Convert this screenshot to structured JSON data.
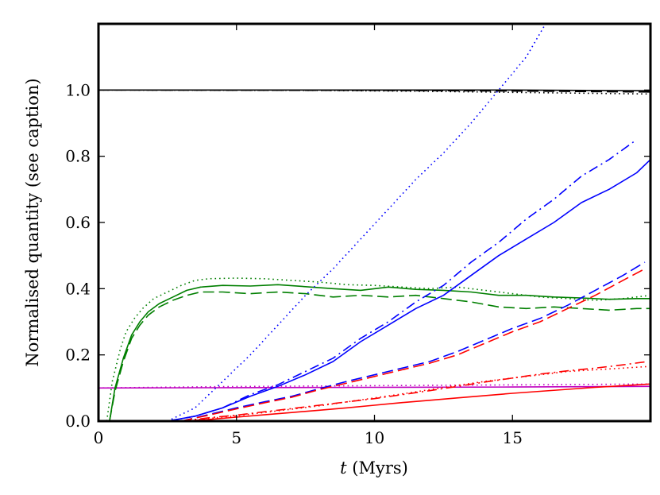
{
  "chart_data": {
    "type": "line",
    "title": "",
    "xlabel_italic": "t",
    "xlabel_rest": " (Myrs)",
    "ylabel": "Normalised quantity (see caption)",
    "xlim": [
      0,
      20
    ],
    "ylim": [
      0,
      1.2
    ],
    "xticks": [
      0,
      5,
      10,
      15
    ],
    "xtick_labels": [
      "0",
      "5",
      "10",
      "15"
    ],
    "yticks": [
      0,
      0.2,
      0.4,
      0.6,
      0.8,
      1.0
    ],
    "ytick_labels": [
      "0.0",
      "0.2",
      "0.4",
      "0.6",
      "0.8",
      "1.0"
    ],
    "grid": false,
    "series": [
      {
        "name": "black-solid",
        "color": "#000000",
        "style": "solid",
        "x": [
          0,
          5,
          10,
          15,
          20
        ],
        "y": [
          1.0,
          1.0,
          1.0,
          1.0,
          0.998
        ]
      },
      {
        "name": "black-dotted",
        "color": "#000000",
        "style": "dotted",
        "x": [
          0,
          8,
          12,
          16,
          20
        ],
        "y": [
          1.0,
          0.999,
          0.996,
          0.992,
          0.988
        ]
      },
      {
        "name": "black-dashed",
        "color": "#000000",
        "style": "dashed",
        "x": [
          0,
          10,
          15,
          20
        ],
        "y": [
          1.0,
          0.999,
          0.997,
          0.994
        ]
      },
      {
        "name": "magenta-solid",
        "color": "#bf00bf",
        "style": "solid",
        "x": [
          0,
          5,
          10,
          15,
          20
        ],
        "y": [
          0.1,
          0.101,
          0.102,
          0.103,
          0.105
        ]
      },
      {
        "name": "magenta-dotted",
        "color": "#bf00bf",
        "style": "dotted",
        "x": [
          0,
          4,
          8,
          12,
          16,
          20
        ],
        "y": [
          0.1,
          0.104,
          0.106,
          0.108,
          0.11,
          0.112
        ]
      },
      {
        "name": "green-dotted",
        "color": "#007f00",
        "style": "dotted",
        "x": [
          0.3,
          0.5,
          0.8,
          1.0,
          1.3,
          1.6,
          2.0,
          2.5,
          3.0,
          3.5,
          4.0,
          5,
          6,
          7,
          8,
          9,
          10,
          11,
          12,
          13,
          14,
          15,
          16,
          17,
          18,
          19,
          20
        ],
        "y": [
          0.0,
          0.12,
          0.22,
          0.27,
          0.31,
          0.34,
          0.37,
          0.39,
          0.41,
          0.425,
          0.43,
          0.432,
          0.43,
          0.425,
          0.42,
          0.412,
          0.41,
          0.405,
          0.4,
          0.405,
          0.395,
          0.385,
          0.375,
          0.37,
          0.365,
          0.37,
          0.38
        ]
      },
      {
        "name": "green-solid",
        "color": "#007f00",
        "style": "solid",
        "x": [
          0.4,
          0.6,
          0.9,
          1.2,
          1.5,
          1.8,
          2.2,
          2.7,
          3.2,
          3.7,
          4.5,
          5.5,
          6.5,
          7.5,
          8.5,
          9.5,
          10.5,
          11.5,
          12.5,
          13.5,
          14.5,
          15.5,
          16.5,
          17.5,
          18.5,
          19.5,
          20
        ],
        "y": [
          0.0,
          0.1,
          0.19,
          0.26,
          0.3,
          0.33,
          0.355,
          0.375,
          0.395,
          0.405,
          0.41,
          0.408,
          0.412,
          0.406,
          0.4,
          0.395,
          0.405,
          0.398,
          0.395,
          0.39,
          0.38,
          0.38,
          0.375,
          0.372,
          0.368,
          0.37,
          0.37
        ]
      },
      {
        "name": "green-dashed",
        "color": "#007f00",
        "style": "dashed",
        "x": [
          0.4,
          0.6,
          0.9,
          1.2,
          1.5,
          1.8,
          2.2,
          2.7,
          3.2,
          3.7,
          4.5,
          5.5,
          6.5,
          7.5,
          8.5,
          9.5,
          10.5,
          11.5,
          12.5,
          13.5,
          14.5,
          15.5,
          16.5,
          17.5,
          18.5,
          19.5,
          20
        ],
        "y": [
          0.0,
          0.09,
          0.18,
          0.25,
          0.29,
          0.32,
          0.345,
          0.365,
          0.38,
          0.39,
          0.39,
          0.385,
          0.39,
          0.385,
          0.375,
          0.38,
          0.375,
          0.38,
          0.37,
          0.36,
          0.345,
          0.34,
          0.345,
          0.34,
          0.335,
          0.34,
          0.34
        ]
      },
      {
        "name": "blue-dotted",
        "color": "#0000ff",
        "style": "dotted",
        "x": [
          2.5,
          3.5,
          4.5,
          5.5,
          6.5,
          7.5,
          8.5,
          9.5,
          10.5,
          11.5,
          12.5,
          13.5,
          14.5,
          15.5,
          16.2
        ],
        "y": [
          0.0,
          0.04,
          0.12,
          0.2,
          0.29,
          0.38,
          0.46,
          0.55,
          0.64,
          0.73,
          0.81,
          0.9,
          1.0,
          1.1,
          1.2
        ]
      },
      {
        "name": "blue-dashdot",
        "color": "#0000ff",
        "style": "dashdot",
        "x": [
          2.5,
          3.5,
          4.5,
          5.5,
          6.5,
          7.5,
          8.5,
          9.5,
          10.5,
          11.5,
          12.5,
          13.5,
          14.5,
          15.5,
          16.5,
          17.5,
          18.5,
          19.5
        ],
        "y": [
          0.0,
          0.015,
          0.04,
          0.08,
          0.11,
          0.15,
          0.19,
          0.25,
          0.3,
          0.36,
          0.41,
          0.48,
          0.54,
          0.61,
          0.67,
          0.74,
          0.79,
          0.85
        ]
      },
      {
        "name": "blue-solid",
        "color": "#0000ff",
        "style": "solid",
        "x": [
          2.5,
          3.5,
          4.5,
          5.5,
          6.5,
          7.5,
          8.5,
          9.5,
          10.5,
          11.5,
          12.5,
          13.5,
          14.5,
          15.5,
          16.5,
          17.5,
          18.5,
          19.5,
          20
        ],
        "y": [
          0.0,
          0.015,
          0.04,
          0.075,
          0.105,
          0.14,
          0.18,
          0.24,
          0.29,
          0.34,
          0.38,
          0.44,
          0.5,
          0.55,
          0.6,
          0.66,
          0.7,
          0.75,
          0.79
        ]
      },
      {
        "name": "blue-dashed",
        "color": "#0000ff",
        "style": "dashed",
        "x": [
          3.0,
          4.0,
          5.0,
          6.0,
          7.0,
          8.0,
          9.0,
          10.0,
          11.0,
          12.0,
          13.0,
          14.0,
          15.0,
          16.0,
          17.0,
          18.0,
          19.0,
          19.8
        ],
        "y": [
          0.0,
          0.02,
          0.04,
          0.058,
          0.075,
          0.098,
          0.12,
          0.14,
          0.16,
          0.18,
          0.21,
          0.245,
          0.28,
          0.31,
          0.35,
          0.395,
          0.44,
          0.48
        ]
      },
      {
        "name": "red-dashed",
        "color": "#ff0000",
        "style": "dashed",
        "x": [
          3.0,
          4.0,
          5.0,
          6.0,
          7.0,
          8.0,
          9.0,
          10.0,
          11.0,
          12.0,
          13.0,
          14.0,
          15.0,
          16.0,
          17.0,
          18.0,
          19.0,
          19.8
        ],
        "y": [
          0.0,
          0.018,
          0.037,
          0.055,
          0.072,
          0.095,
          0.115,
          0.135,
          0.155,
          0.175,
          0.2,
          0.235,
          0.27,
          0.3,
          0.34,
          0.38,
          0.425,
          0.46
        ]
      },
      {
        "name": "red-dashdot",
        "color": "#ff0000",
        "style": "dashdot",
        "x": [
          3.0,
          4.0,
          5.0,
          6.0,
          7.0,
          8.0,
          9.0,
          10.0,
          11.0,
          12.0,
          13.0,
          14.0,
          15.0,
          16.0,
          17.0,
          18.0,
          19.0,
          19.9
        ],
        "y": [
          0.0,
          0.01,
          0.018,
          0.028,
          0.038,
          0.048,
          0.058,
          0.068,
          0.08,
          0.092,
          0.105,
          0.118,
          0.13,
          0.142,
          0.152,
          0.16,
          0.17,
          0.18
        ]
      },
      {
        "name": "red-dotted",
        "color": "#ff0000",
        "style": "dotted",
        "x": [
          3.0,
          4.0,
          5.0,
          6.0,
          7.0,
          8.0,
          9.0,
          10.0,
          11.0,
          12.0,
          13.0,
          14.0,
          15.0,
          16.0,
          17.0,
          18.0,
          19.0,
          19.9
        ],
        "y": [
          0.0,
          0.008,
          0.016,
          0.026,
          0.036,
          0.046,
          0.058,
          0.07,
          0.082,
          0.095,
          0.108,
          0.12,
          0.13,
          0.14,
          0.15,
          0.155,
          0.16,
          0.165
        ]
      },
      {
        "name": "red-solid",
        "color": "#ff0000",
        "style": "solid",
        "x": [
          3.0,
          4.0,
          5.0,
          6.0,
          7.0,
          8.0,
          9.0,
          10.0,
          11.0,
          12.0,
          13.0,
          14.0,
          15.0,
          16.0,
          17.0,
          18.0,
          19.0,
          20.0
        ],
        "y": [
          0.0,
          0.005,
          0.012,
          0.019,
          0.026,
          0.033,
          0.04,
          0.048,
          0.056,
          0.063,
          0.07,
          0.077,
          0.084,
          0.09,
          0.096,
          0.102,
          0.107,
          0.112
        ]
      }
    ]
  }
}
